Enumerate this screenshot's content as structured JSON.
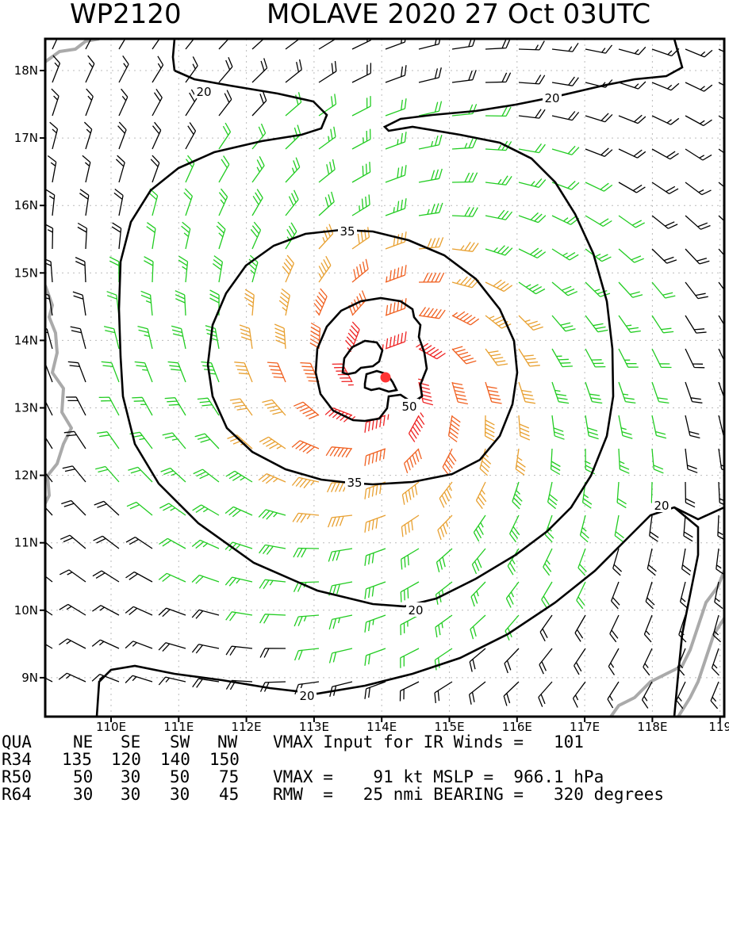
{
  "header": {
    "storm_id": "WP2120",
    "storm_desc": "MOLAVE 2020 27 Oct 03UTC"
  },
  "map": {
    "lat_labels": [
      "18N",
      "17N",
      "16N",
      "15N",
      "14N",
      "13N",
      "12N",
      "11N",
      "10N",
      "9N"
    ],
    "lon_labels": [
      "110E",
      "111E",
      "112E",
      "113E",
      "114E",
      "115E",
      "116E",
      "117E",
      "118E",
      "119"
    ],
    "contour_labels": {
      "c20_top_left": "20",
      "c20_top_right": "20",
      "c20_bottom_right": "20",
      "c20_bottom": "20",
      "c20_outer_mid": "20",
      "c35_top": "35",
      "c35_bottom": "35",
      "c50": "50"
    },
    "colors": {
      "low_wind": "#000000",
      "wind_20_35": "#22cc22",
      "wind_35_50": "#e8a030",
      "wind_50_64": "#f06020",
      "wind_64_plus": "#ee2222",
      "center": "#ff3333",
      "coast": "#aaaaaa"
    }
  },
  "table": {
    "header": [
      "QUA",
      "NE",
      "SE",
      "SW",
      "NW"
    ],
    "rows": [
      {
        "label": "R34",
        "ne": "135",
        "se": "120",
        "sw": "140",
        "nw": "150"
      },
      {
        "label": "R50",
        "ne": "50",
        "se": "30",
        "sw": "50",
        "nw": "75"
      },
      {
        "label": "R64",
        "ne": "30",
        "se": "30",
        "sw": "30",
        "nw": "45"
      }
    ]
  },
  "info": {
    "line1": "VMAX Input for IR Winds =   101",
    "line2": "VMAX =    91 kt MSLP =  966.1 hPa",
    "line3": "RMW  =   25 nmi BEARING =   320 degrees"
  }
}
